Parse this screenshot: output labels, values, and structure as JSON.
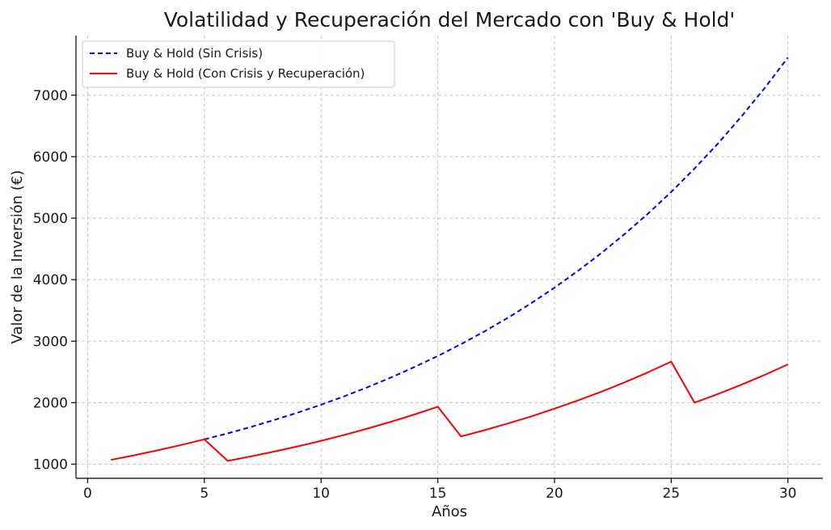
{
  "chart_data": {
    "type": "line",
    "title": "Volatilidad y Recuperación del Mercado con 'Buy & Hold'",
    "xlabel": "Años",
    "ylabel": "Valor de la Inversión (€)",
    "xlim": [
      -0.5,
      31.5
    ],
    "ylim": [
      770,
      7970
    ],
    "xticks": [
      0,
      5,
      10,
      15,
      20,
      25,
      30
    ],
    "yticks": [
      1000,
      2000,
      3000,
      4000,
      5000,
      6000,
      7000
    ],
    "grid": true,
    "legend_position": "top-left",
    "x": [
      1,
      2,
      3,
      4,
      5,
      6,
      7,
      8,
      9,
      10,
      11,
      12,
      13,
      14,
      15,
      16,
      17,
      18,
      19,
      20,
      21,
      22,
      23,
      24,
      25,
      26,
      27,
      28,
      29,
      30
    ],
    "series": [
      {
        "name": "Buy & Hold (Sin Crisis)",
        "color": "#0000ff",
        "style": "dashed",
        "start_index": 4,
        "values": [
          1070,
          1145,
          1225,
          1311,
          1403,
          1501,
          1606,
          1718,
          1838,
          1967,
          2105,
          2252,
          2410,
          2579,
          2759,
          2952,
          3159,
          3380,
          3617,
          3870,
          4141,
          4430,
          4741,
          5072,
          5427,
          5807,
          6214,
          6649,
          7114,
          7612
        ]
      },
      {
        "name": "Buy & Hold (Con Crisis y Recuperación)",
        "color": "#ff0000",
        "style": "solid",
        "start_index": 0,
        "values": [
          1070,
          1145,
          1225,
          1311,
          1403,
          1052,
          1126,
          1205,
          1289,
          1379,
          1476,
          1579,
          1690,
          1808,
          1934,
          1451,
          1552,
          1661,
          1777,
          1902,
          2035,
          2177,
          2330,
          2493,
          2667,
          2000,
          2140,
          2290,
          2450,
          2622
        ]
      }
    ]
  }
}
